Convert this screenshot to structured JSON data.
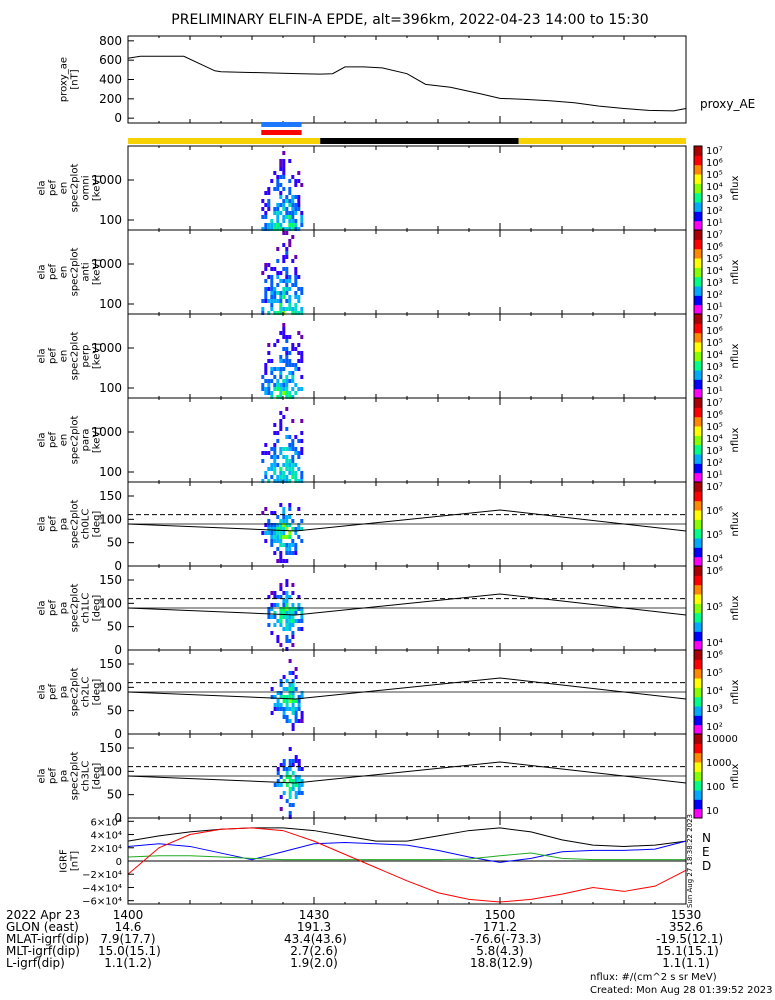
{
  "title": "PRELIMINARY ELFIN-A EPDE, alt=396km, 2022-04-23 14:00 to 15:30",
  "colors": {
    "yellow": "#f5d200",
    "black": "#000000",
    "blue": "#1e78ff",
    "red": "#ff0000",
    "green": "#22aa22",
    "trace_blue": "#0000ff"
  },
  "chart_data": [
    {
      "type": "line",
      "panel": "proxy_ae",
      "ylabel": [
        "proxy_ae",
        "[nT]"
      ],
      "legend": "proxy_AE",
      "yticks": [
        "800",
        "600",
        "400",
        "200",
        "0"
      ],
      "ylim": [
        -50,
        850
      ],
      "x_minutes": [
        0,
        2,
        5,
        9,
        14,
        15,
        28,
        31,
        33,
        35,
        38,
        41,
        45,
        48,
        52,
        57,
        60,
        64,
        68,
        72,
        76,
        80,
        84,
        88,
        90
      ],
      "values": [
        620,
        640,
        640,
        640,
        490,
        480,
        460,
        455,
        460,
        530,
        530,
        520,
        460,
        350,
        320,
        250,
        205,
        195,
        180,
        160,
        125,
        100,
        80,
        75,
        100
      ]
    },
    {
      "type": "bar",
      "panel": "orbit-bar",
      "segments": [
        {
          "from": 0,
          "to": 31,
          "color": "yellow"
        },
        {
          "from": 31,
          "to": 63,
          "color": "black"
        },
        {
          "from": 63,
          "to": 90,
          "color": "yellow"
        }
      ],
      "markers": [
        {
          "from": 21.5,
          "to": 28,
          "color": "blue"
        },
        {
          "from": 21.5,
          "to": 28,
          "color": "red"
        }
      ]
    },
    {
      "type": "heatmap",
      "panel": "en-omni",
      "ylabel": [
        "ela",
        "pef",
        "en",
        "spec2plot",
        "omni",
        "[keV]"
      ],
      "yticks": [
        "1000",
        "100"
      ],
      "zlabel": "nflux",
      "zticks": [
        "10⁷",
        "10⁶",
        "10⁵",
        "10⁴",
        "10³",
        "10²",
        "10¹"
      ],
      "active_minutes": [
        21.5,
        28
      ]
    },
    {
      "type": "heatmap",
      "panel": "en-anti",
      "ylabel": [
        "ela",
        "pef",
        "en",
        "spec2plot",
        "anti",
        "[keV]"
      ],
      "yticks": [
        "1000",
        "100"
      ],
      "zlabel": "nflux",
      "zticks": [
        "10⁷",
        "10⁶",
        "10⁵",
        "10⁴",
        "10³",
        "10²",
        "10¹"
      ],
      "active_minutes": [
        21.5,
        28
      ]
    },
    {
      "type": "heatmap",
      "panel": "en-perp",
      "ylabel": [
        "ela",
        "pef",
        "en",
        "spec2plot",
        "perp",
        "[keV]"
      ],
      "yticks": [
        "1000",
        "100"
      ],
      "zlabel": "nflux",
      "zticks": [
        "10⁷",
        "10⁶",
        "10⁵",
        "10⁴",
        "10³",
        "10²",
        "10¹"
      ],
      "active_minutes": [
        21.5,
        28
      ]
    },
    {
      "type": "heatmap",
      "panel": "en-para",
      "ylabel": [
        "ela",
        "pef",
        "en",
        "spec2plot",
        "para",
        "[keV]"
      ],
      "yticks": [
        "1000",
        "100"
      ],
      "zlabel": "nflux",
      "zticks": [
        "10⁷",
        "10⁶",
        "10⁵",
        "10⁴",
        "10³",
        "10²",
        "10¹"
      ],
      "active_minutes": [
        21.5,
        28
      ]
    },
    {
      "type": "heatmap",
      "panel": "pa-ch0",
      "ylabel": [
        "ela",
        "pef",
        "pa",
        "spec2plot",
        "ch0LC",
        "[deg]"
      ],
      "yticks": [
        "150",
        "100",
        "50",
        "0"
      ],
      "zlabel": "nflux",
      "zticks": [
        "10⁷",
        "10⁶",
        "10⁵",
        "10⁴"
      ],
      "active_minutes": [
        21.5,
        28
      ],
      "lc_dashed": 110,
      "lc_solid_x": [
        0,
        27,
        60,
        90
      ],
      "lc_solid_y": [
        90,
        75,
        120,
        75
      ],
      "lc_mirror_y": [
        70,
        65,
        60,
        105
      ]
    },
    {
      "type": "heatmap",
      "panel": "pa-ch1",
      "ylabel": [
        "ela",
        "pef",
        "pa",
        "spec2plot",
        "ch1LC",
        "[deg]"
      ],
      "yticks": [
        "150",
        "100",
        "50",
        "0"
      ],
      "zlabel": "nflux",
      "zticks": [
        "10⁶",
        "10⁵",
        "10⁴"
      ],
      "active_minutes": [
        22,
        28
      ],
      "lc_dashed": 110,
      "lc_solid_x": [
        0,
        27,
        60,
        90
      ],
      "lc_solid_y": [
        90,
        75,
        120,
        75
      ]
    },
    {
      "type": "heatmap",
      "panel": "pa-ch2",
      "ylabel": [
        "ela",
        "pef",
        "pa",
        "spec2plot",
        "ch2LC",
        "[deg]"
      ],
      "yticks": [
        "150",
        "100",
        "50",
        "0"
      ],
      "zlabel": "nflux",
      "zticks": [
        "10⁶",
        "10⁵",
        "10⁴",
        "10³",
        "10²"
      ],
      "active_minutes": [
        23,
        28
      ],
      "lc_dashed": 110,
      "lc_solid_x": [
        0,
        27,
        60,
        90
      ],
      "lc_solid_y": [
        90,
        75,
        120,
        75
      ]
    },
    {
      "type": "heatmap",
      "panel": "pa-ch3",
      "ylabel": [
        "ela",
        "pef",
        "pa",
        "spec2plot",
        "ch3LC",
        "[deg]"
      ],
      "yticks": [
        "150",
        "100",
        "50",
        "0"
      ],
      "zlabel": "nflux",
      "zticks": [
        "10000",
        "1000",
        "100",
        "10"
      ],
      "active_minutes": [
        23.5,
        28
      ],
      "lc_dashed": 110,
      "lc_solid_x": [
        0,
        27,
        60,
        90
      ],
      "lc_solid_y": [
        90,
        75,
        120,
        75
      ]
    },
    {
      "type": "line",
      "panel": "igrf",
      "ylabel": [
        "IGRF",
        "[nT]"
      ],
      "yticks": [
        "6×10⁴",
        "4×10⁴",
        "2×10⁴",
        "0",
        "−2×10⁴",
        "−4×10⁴",
        "−6×10⁴"
      ],
      "ylim": [
        -65000,
        65000
      ],
      "legend": [
        "N",
        "E",
        "D"
      ],
      "side_text": "Sun Aug 27 18:38:22 2023",
      "x": [
        0,
        5,
        10,
        15,
        20,
        25,
        30,
        35,
        40,
        45,
        50,
        55,
        60,
        65,
        70,
        75,
        80,
        85,
        90
      ],
      "series": [
        {
          "name": "N",
          "color": "black",
          "values": [
            30000,
            38000,
            44000,
            48000,
            50000,
            50000,
            46000,
            38000,
            30000,
            30000,
            38000,
            46000,
            50000,
            44000,
            32000,
            24000,
            22000,
            24000,
            30000
          ]
        },
        {
          "name": "E",
          "color": "trace_blue",
          "values": [
            22000,
            26000,
            22000,
            12000,
            2000,
            14000,
            26000,
            28000,
            26000,
            24000,
            16000,
            6000,
            -2000,
            4000,
            14000,
            16000,
            16000,
            18000,
            30000
          ]
        },
        {
          "name": "D",
          "color": "green",
          "values": [
            6000,
            8000,
            8000,
            6000,
            4000,
            2000,
            2000,
            2000,
            2000,
            2000,
            2000,
            3000,
            8000,
            12000,
            4000,
            2000,
            2000,
            2000,
            2000
          ]
        },
        {
          "name": "red",
          "color": "red",
          "values": [
            -20000,
            20000,
            40000,
            48000,
            50000,
            46000,
            30000,
            10000,
            -10000,
            -30000,
            -48000,
            -58000,
            -62000,
            -58000,
            -50000,
            -40000,
            -46000,
            -38000,
            -14000
          ]
        }
      ]
    }
  ],
  "footer": {
    "rows": [
      {
        "label": "2022 Apr 23",
        "vals": [
          "1400",
          "1430",
          "1500",
          "1530"
        ]
      },
      {
        "label": "GLON (east)",
        "vals": [
          "14.6",
          "191.3",
          "171.2",
          "352.6"
        ]
      },
      {
        "label": "MLAT-igrf(dip)",
        "vals": [
          "7.9(17.7)",
          "43.4(43.6)",
          "-76.6(-73.3)",
          "-19.5(12.1)"
        ]
      },
      {
        "label": "MLT-igrf(dip)",
        "vals": [
          "15.0(15.1)",
          "2.7(2.6)",
          "5.8(4.3)",
          "15.1(15.1)"
        ]
      },
      {
        "label": "L-igrf(dip)",
        "vals": [
          "1.1(1.2)",
          "1.9(2.0)",
          "18.8(12.9)",
          "1.1(1.1)"
        ]
      }
    ],
    "units_note": "nflux: #/(cm^2 s sr MeV)",
    "created": "Created: Mon Aug 28 01:39:52 2023"
  }
}
